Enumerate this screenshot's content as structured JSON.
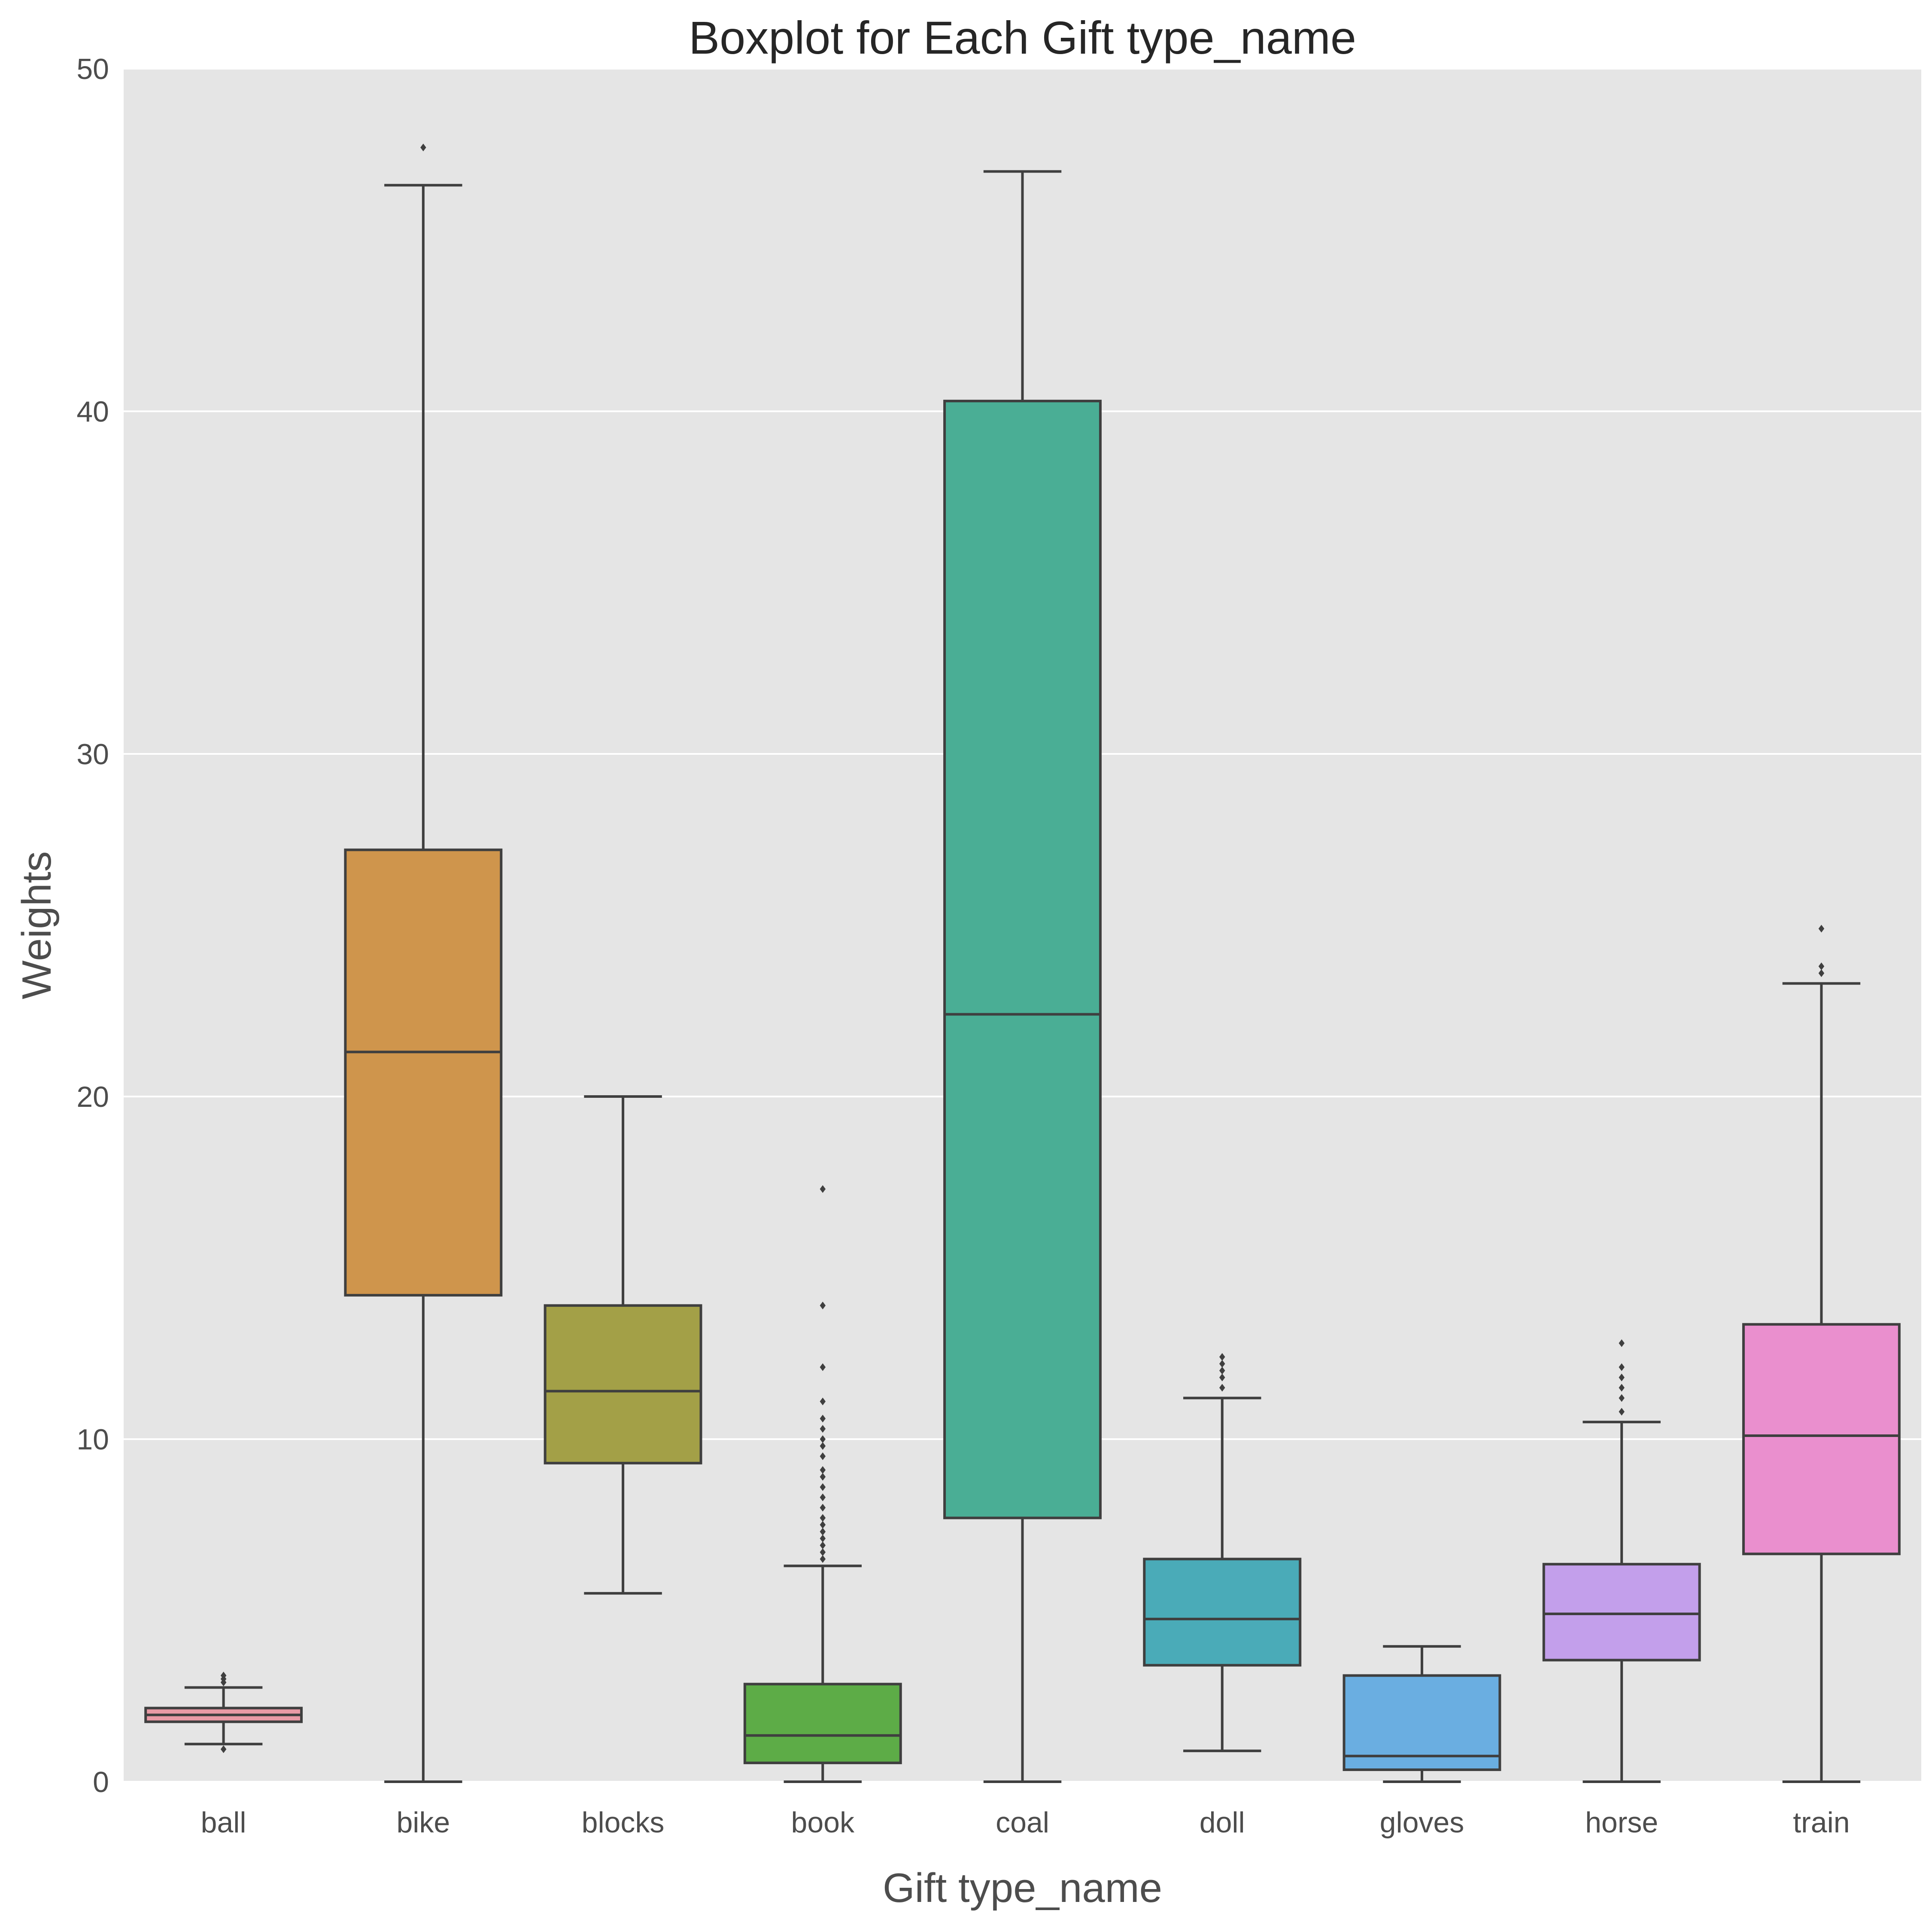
{
  "chart_data": {
    "type": "boxplot",
    "title": "Boxplot for Each Gift type_name",
    "xlabel": "Gift type_name",
    "ylabel": "Weights",
    "ylim": [
      0,
      50
    ],
    "yticks": [
      0,
      10,
      20,
      30,
      40,
      50
    ],
    "grid": true,
    "background": "#e5e5e5",
    "line_color": "#3f3f3f",
    "categories": [
      "ball",
      "bike",
      "blocks",
      "book",
      "coal",
      "doll",
      "gloves",
      "horse",
      "train"
    ],
    "boxes": [
      {
        "name": "ball",
        "color": "#e99aa5",
        "whisker_low": 1.1,
        "q1": 1.75,
        "median": 1.95,
        "q3": 2.15,
        "whisker_high": 2.75,
        "outliers": [
          0.95,
          2.9,
          3.0,
          3.1
        ]
      },
      {
        "name": "bike",
        "color": "#cf954c",
        "whisker_low": 0.0,
        "q1": 14.2,
        "median": 21.3,
        "q3": 27.2,
        "whisker_high": 46.6,
        "outliers": [
          47.7
        ]
      },
      {
        "name": "blocks",
        "color": "#a3a047",
        "whisker_low": 5.5,
        "q1": 9.3,
        "median": 11.4,
        "q3": 13.9,
        "whisker_high": 20.0,
        "outliers": []
      },
      {
        "name": "book",
        "color": "#5dac47",
        "whisker_low": 0.0,
        "q1": 0.55,
        "median": 1.35,
        "q3": 2.85,
        "whisker_high": 6.3,
        "outliers": [
          6.5,
          6.7,
          6.9,
          7.1,
          7.3,
          7.5,
          7.7,
          8.0,
          8.3,
          8.6,
          8.9,
          9.1,
          9.5,
          9.8,
          10.0,
          10.3,
          10.6,
          11.1,
          12.1,
          13.9,
          17.3
        ]
      },
      {
        "name": "coal",
        "color": "#4aae95",
        "whisker_low": 0.0,
        "q1": 7.7,
        "median": 22.4,
        "q3": 40.3,
        "whisker_high": 47.0,
        "outliers": []
      },
      {
        "name": "doll",
        "color": "#4aabb8",
        "whisker_low": 0.9,
        "q1": 3.4,
        "median": 4.75,
        "q3": 6.5,
        "whisker_high": 11.2,
        "outliers": [
          11.5,
          11.8,
          12.0,
          12.2,
          12.4
        ]
      },
      {
        "name": "gloves",
        "color": "#6aaee1",
        "whisker_low": 0.0,
        "q1": 0.35,
        "median": 0.75,
        "q3": 3.1,
        "whisker_high": 3.95,
        "outliers": []
      },
      {
        "name": "horse",
        "color": "#c39feb",
        "whisker_low": 0.0,
        "q1": 3.55,
        "median": 4.9,
        "q3": 6.35,
        "whisker_high": 10.5,
        "outliers": [
          10.8,
          11.2,
          11.5,
          11.8,
          12.1,
          12.8
        ]
      },
      {
        "name": "train",
        "color": "#ea8fce",
        "whisker_low": 0.0,
        "q1": 6.65,
        "median": 10.1,
        "q3": 13.35,
        "whisker_high": 23.3,
        "outliers": [
          23.6,
          23.8,
          24.9
        ]
      }
    ]
  }
}
